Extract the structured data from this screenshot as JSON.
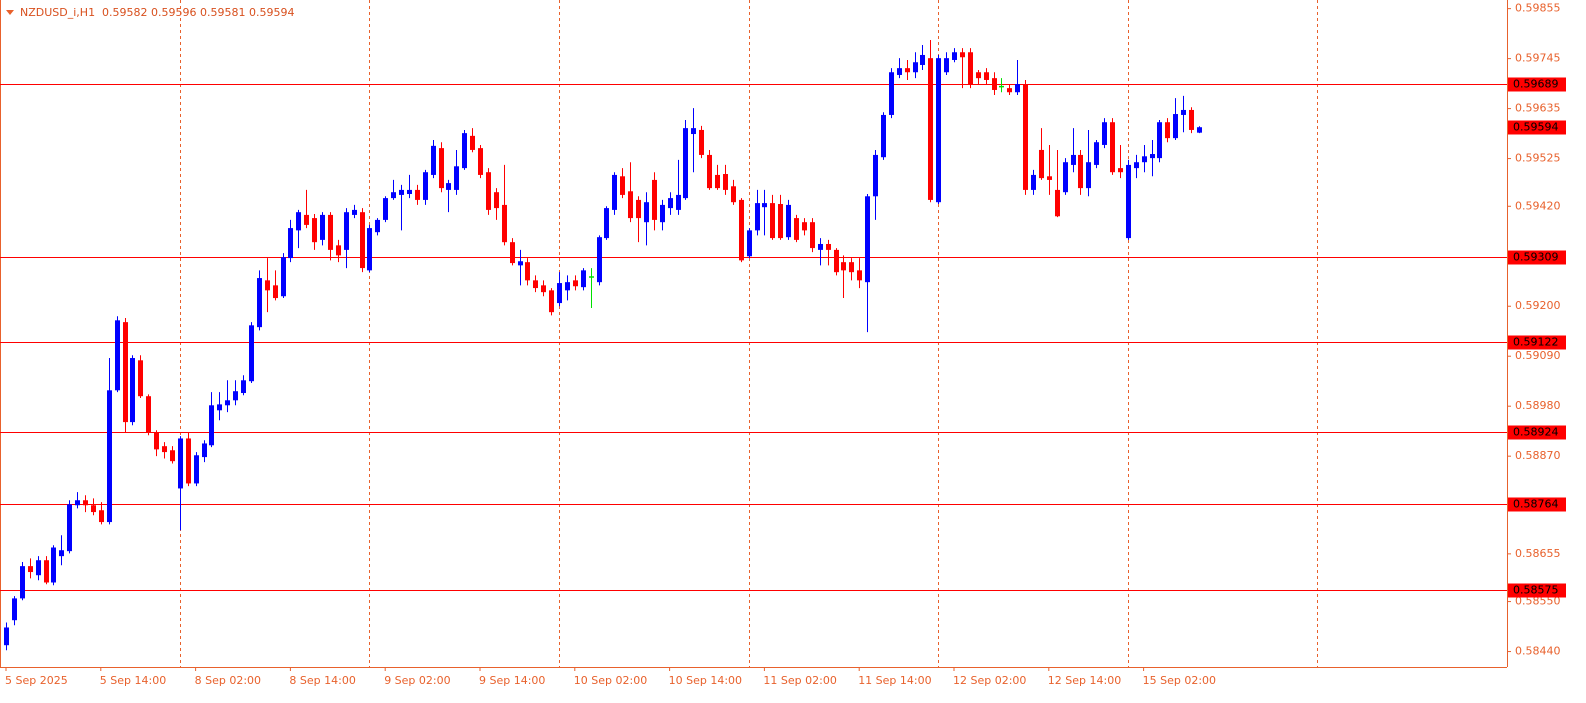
{
  "chart_data": {
    "type": "candlestick",
    "title": "NZDUSD_i,H1  0.59582 0.59596 0.59581 0.59594",
    "categories": [
      "5 Sep 2025",
      null,
      null,
      null,
      null,
      null,
      null,
      null,
      null,
      null,
      null,
      null,
      "5 Sep 14:00",
      null,
      null,
      null,
      null,
      null,
      null,
      null,
      null,
      null,
      null,
      null,
      "8 Sep 02:00",
      null,
      null,
      null,
      null,
      null,
      null,
      null,
      null,
      null,
      null,
      null,
      "8 Sep 14:00",
      null,
      null,
      null,
      null,
      null,
      null,
      null,
      null,
      null,
      null,
      null,
      "9 Sep 02:00",
      null,
      null,
      null,
      null,
      null,
      null,
      null,
      null,
      null,
      null,
      null,
      "9 Sep 14:00",
      null,
      null,
      null,
      null,
      null,
      null,
      null,
      null,
      null,
      null,
      null,
      "10 Sep 02:00",
      null,
      null,
      null,
      null,
      null,
      null,
      null,
      null,
      null,
      null,
      null,
      "10 Sep 14:00",
      null,
      null,
      null,
      null,
      null,
      null,
      null,
      null,
      null,
      null,
      null,
      "11 Sep 02:00",
      null,
      null,
      null,
      null,
      null,
      null,
      null,
      null,
      null,
      null,
      null,
      "11 Sep 14:00",
      null,
      null,
      null,
      null,
      null,
      null,
      null,
      null,
      null,
      null,
      null,
      "12 Sep 02:00",
      null,
      null,
      null,
      null,
      null,
      null,
      null,
      null,
      null,
      null,
      null,
      "12 Sep 14:00",
      null,
      null,
      null,
      null,
      null,
      null,
      null,
      null,
      null,
      null,
      null,
      "15 Sep 02:00",
      null,
      null,
      null,
      null,
      null,
      null,
      null
    ],
    "open": [
      0.58454,
      0.58509,
      0.58557,
      0.58628,
      0.58608,
      0.58641,
      0.58592,
      0.5865,
      0.58661,
      0.58762,
      0.58773,
      0.58762,
      0.58751,
      0.58725,
      0.59015,
      0.59165,
      0.58945,
      0.59081,
      0.59002,
      0.58923,
      0.58892,
      0.58883,
      0.58799,
      0.58909,
      0.5881,
      0.58868,
      0.58894,
      0.58971,
      0.58982,
      0.58993,
      0.59009,
      0.59035,
      0.59154,
      0.59257,
      0.59246,
      0.59222,
      0.59306,
      0.59367,
      0.59401,
      0.59394,
      0.59346,
      0.59401,
      0.59334,
      0.59324,
      0.59401,
      0.59407,
      0.59279,
      0.59363,
      0.5939,
      0.59438,
      0.59445,
      0.59447,
      0.59456,
      0.59434,
      0.59489,
      0.59548,
      0.59456,
      0.59456,
      0.59504,
      0.59575,
      0.59548,
      0.59495,
      0.59451,
      0.59423,
      0.59341,
      0.5929,
      0.59297,
      0.59257,
      0.59246,
      0.59235,
      0.59207,
      0.59235,
      0.59257,
      0.59242,
      0.59266,
      0.59253,
      0.5935,
      0.59412,
      0.59486,
      0.59453,
      0.59434,
      0.59385,
      0.59478,
      0.59385,
      0.59416,
      0.59412,
      0.59438,
      0.59579,
      0.59588,
      0.59533,
      0.59489,
      0.59491,
      0.59464,
      0.59434,
      0.5931,
      0.59367,
      0.59418,
      0.59427,
      0.59425,
      0.59352,
      0.59394,
      0.59385,
      0.59385,
      0.59324,
      0.59337,
      0.59324,
      0.59297,
      0.59297,
      0.59279,
      0.59253,
      0.59442,
      0.59528,
      0.59621,
      0.59709,
      0.59724,
      0.59715,
      0.59731,
      0.59746,
      0.59429,
      0.59715,
      0.59742,
      0.59759,
      0.59759,
      0.59715,
      0.59715,
      0.59702,
      0.59685,
      0.5968,
      0.59671,
      0.59689,
      0.59456,
      0.59544,
      0.59486,
      0.59456,
      0.59451,
      0.59511,
      0.59533,
      0.5946,
      0.59511,
      0.59555,
      0.59605,
      0.59504,
      0.5935,
      0.59504,
      0.59517,
      0.59526,
      0.59526,
      0.59605,
      0.5957,
      0.59621,
      0.59632,
      0.59582
    ],
    "high": [
      0.58504,
      0.58562,
      0.58637,
      0.58645,
      0.5865,
      0.5865,
      0.58674,
      0.58696,
      0.58773,
      0.58791,
      0.58784,
      0.58777,
      0.58769,
      0.59086,
      0.59178,
      0.59174,
      0.59092,
      0.59092,
      0.59006,
      0.58927,
      0.58901,
      0.58892,
      0.58914,
      0.58921,
      0.58879,
      0.58905,
      0.59011,
      0.59011,
      0.59037,
      0.59037,
      0.59048,
      0.59165,
      0.59279,
      0.59306,
      0.59279,
      0.59317,
      0.5939,
      0.59412,
      0.59456,
      0.59403,
      0.59407,
      0.59407,
      0.59346,
      0.59416,
      0.59423,
      0.59416,
      0.59379,
      0.59394,
      0.59442,
      0.59478,
      0.59467,
      0.59489,
      0.59467,
      0.595,
      0.59566,
      0.59561,
      0.59478,
      0.59544,
      0.59588,
      0.59592,
      0.59555,
      0.59504,
      0.5946,
      0.59511,
      0.5935,
      0.59324,
      0.59306,
      0.59268,
      0.59257,
      0.5924,
      0.59275,
      0.59268,
      0.59268,
      0.59284,
      0.59284,
      0.59356,
      0.5942,
      0.59495,
      0.59504,
      0.59517,
      0.59442,
      0.59451,
      0.59495,
      0.59434,
      0.59451,
      0.59522,
      0.5961,
      0.59636,
      0.59597,
      0.59544,
      0.59511,
      0.59511,
      0.59478,
      0.59438,
      0.59372,
      0.59456,
      0.59456,
      0.59445,
      0.59445,
      0.59434,
      0.59401,
      0.59394,
      0.59394,
      0.5935,
      0.59346,
      0.59328,
      0.59312,
      0.59306,
      0.59306,
      0.59447,
      0.59544,
      0.59627,
      0.59724,
      0.59746,
      0.59742,
      0.59759,
      0.59775,
      0.59786,
      0.59753,
      0.59759,
      0.59768,
      0.59768,
      0.59768,
      0.5972,
      0.59724,
      0.59715,
      0.59702,
      0.59687,
      0.59742,
      0.59698,
      0.595,
      0.59592,
      0.59555,
      0.59544,
      0.59526,
      0.59592,
      0.59544,
      0.59588,
      0.59566,
      0.59614,
      0.59614,
      0.59555,
      0.59522,
      0.59533,
      0.59555,
      0.59566,
      0.5961,
      0.59614,
      0.59658,
      0.59663,
      0.59638,
      0.59596
    ],
    "low": [
      0.58443,
      0.58498,
      0.58553,
      0.58601,
      0.58597,
      0.58588,
      0.58586,
      0.5863,
      0.58656,
      0.58755,
      0.58747,
      0.5874,
      0.5872,
      0.5872,
      0.59011,
      0.58921,
      0.58938,
      0.58998,
      0.58916,
      0.5887,
      0.58865,
      0.58854,
      0.58707,
      0.58804,
      0.58804,
      0.58857,
      0.5889,
      0.58949,
      0.58967,
      0.58982,
      0.59004,
      0.59031,
      0.59147,
      0.59187,
      0.59213,
      0.59218,
      0.59297,
      0.59328,
      0.59372,
      0.59324,
      0.59334,
      0.59301,
      0.59297,
      0.59284,
      0.59394,
      0.59275,
      0.59275,
      0.59356,
      0.59385,
      0.59434,
      0.59367,
      0.59438,
      0.59423,
      0.59423,
      0.59482,
      0.59451,
      0.59407,
      0.59445,
      0.595,
      0.59539,
      0.59482,
      0.59401,
      0.5939,
      0.59334,
      0.5929,
      0.59246,
      0.59246,
      0.59231,
      0.59222,
      0.5918,
      0.592,
      0.59213,
      0.59235,
      0.59235,
      0.59196,
      0.59246,
      0.59346,
      0.59401,
      0.59438,
      0.59385,
      0.59341,
      0.59334,
      0.59367,
      0.59367,
      0.59401,
      0.59401,
      0.59434,
      0.59495,
      0.59526,
      0.59456,
      0.59456,
      0.59445,
      0.59423,
      0.59297,
      0.59306,
      0.59356,
      0.59356,
      0.59346,
      0.59346,
      0.59346,
      0.59341,
      0.59356,
      0.59319,
      0.5929,
      0.5929,
      0.59268,
      0.59218,
      0.59257,
      0.5924,
      0.59143,
      0.5939,
      0.59522,
      0.59614,
      0.59702,
      0.59698,
      0.59702,
      0.5972,
      0.59429,
      0.59425,
      0.59709,
      0.59737,
      0.5968,
      0.5968,
      0.59687,
      0.59687,
      0.59665,
      0.59671,
      0.59665,
      0.59665,
      0.59445,
      0.59445,
      0.59478,
      0.59445,
      0.59396,
      0.59445,
      0.59495,
      0.59445,
      0.59442,
      0.59504,
      0.59548,
      0.59489,
      0.59482,
      0.59346,
      0.59482,
      0.59495,
      0.59486,
      0.59517,
      0.59561,
      0.59566,
      0.59583,
      0.59581,
      0.59581
    ],
    "close": [
      0.58493,
      0.58557,
      0.58628,
      0.58615,
      0.58641,
      0.58592,
      0.58669,
      0.58663,
      0.58764,
      0.58773,
      0.58762,
      0.58747,
      0.58725,
      0.59015,
      0.59169,
      0.58945,
      0.59086,
      0.59002,
      0.58923,
      0.58885,
      0.58879,
      0.58859,
      0.58909,
      0.5881,
      0.58872,
      0.58898,
      0.58982,
      0.58984,
      0.58993,
      0.59013,
      0.59037,
      0.59158,
      0.59262,
      0.59235,
      0.59218,
      0.59308,
      0.59372,
      0.59407,
      0.59379,
      0.59341,
      0.59401,
      0.59324,
      0.59312,
      0.59407,
      0.59412,
      0.59284,
      0.59372,
      0.5939,
      0.59438,
      0.59451,
      0.59456,
      0.59456,
      0.59434,
      0.59495,
      0.59553,
      0.5946,
      0.59471,
      0.59508,
      0.59581,
      0.59544,
      0.59489,
      0.59412,
      0.59416,
      0.59341,
      0.59295,
      0.59299,
      0.59257,
      0.5924,
      0.59231,
      0.59187,
      0.59251,
      0.59253,
      0.59244,
      0.59279,
      0.59266,
      0.59352,
      0.59416,
      0.59489,
      0.59445,
      0.59394,
      0.59394,
      0.59429,
      0.5939,
      0.59423,
      0.59438,
      0.59445,
      0.59592,
      0.59592,
      0.59533,
      0.5946,
      0.5946,
      0.59456,
      0.59429,
      0.59301,
      0.59367,
      0.59427,
      0.59427,
      0.5935,
      0.5935,
      0.59423,
      0.59346,
      0.59367,
      0.59328,
      0.59337,
      0.59324,
      0.59275,
      0.59279,
      0.59275,
      0.59257,
      0.59442,
      0.59533,
      0.59621,
      0.59715,
      0.59724,
      0.59715,
      0.59737,
      0.59753,
      0.59434,
      0.59746,
      0.59746,
      0.59759,
      0.59748,
      0.59689,
      0.59702,
      0.59698,
      0.59676,
      0.59685,
      0.59671,
      0.59689,
      0.59456,
      0.59489,
      0.59482,
      0.59478,
      0.59398,
      0.59517,
      0.59533,
      0.5946,
      0.59517,
      0.59561,
      0.59605,
      0.59495,
      0.59495,
      0.59511,
      0.59517,
      0.5953,
      0.59535,
      0.59605,
      0.5957,
      0.59623,
      0.59632,
      0.59588,
      0.59594
    ],
    "colors": {
      "up": "#0000ff",
      "down": "#ff0000",
      "doji": "#00e000"
    },
    "ylim": [
      0.58406,
      0.59874
    ],
    "yticks": [
      0.59855,
      0.59745,
      0.59635,
      0.59525,
      {
        "value": 0.5942,
        "label": "0.59420"
      },
      {
        "value": 0.592,
        "label": "0.59200"
      },
      {
        "value": 0.5909,
        "label": "0.59090"
      },
      {
        "value": 0.5898,
        "label": "0.58980"
      },
      {
        "value": 0.5887,
        "label": "0.58870"
      },
      0.58655,
      {
        "value": 0.5855,
        "label": "0.58550"
      },
      {
        "value": 0.5844,
        "label": "0.58440"
      }
    ],
    "levels": [
      0.59689,
      0.59309,
      0.59122,
      0.58924,
      0.58764,
      0.58575
    ],
    "level_color": "#ff0000",
    "last_price": 0.59594,
    "grid": true,
    "grid_color": "#e8612c",
    "vgrid": [
      22,
      46,
      70,
      94,
      118,
      142,
      166
    ],
    "axis_color": "#e8612c"
  }
}
